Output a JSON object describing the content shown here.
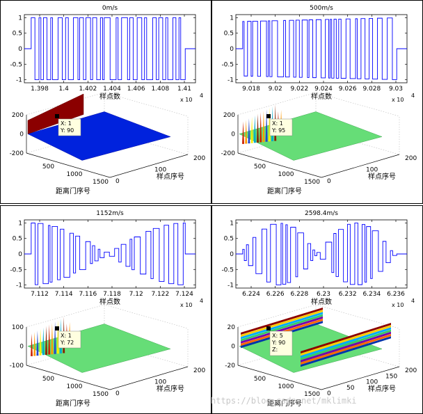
{
  "chart_data": [
    {
      "type": "line",
      "title": "0m/s",
      "xlabel": "样点数",
      "x_exponent_label": "x 10",
      "x_exponent_power": "4",
      "xticks": [
        "1.398",
        "1.4",
        "1.402",
        "1.404",
        "1.406",
        "1.408",
        "1.41"
      ],
      "yticks": [
        "1",
        "0.5",
        "0",
        "-0.5",
        "-1"
      ],
      "xlim": [
        13965,
        14115
      ],
      "ylim": [
        -1.1,
        1.1
      ],
      "envelope": "flat",
      "series_color": "#0000ff",
      "lower_plot": {
        "xlabel": "距离门序号",
        "ylabel": "样点序号",
        "xticks": [
          "500",
          "1000",
          "1500"
        ],
        "yticks": [
          "0",
          "100",
          "200"
        ],
        "zticks": [
          "200",
          "0",
          "-200"
        ],
        "tooltip_lines": [
          "X: 1",
          "Y: 90"
        ],
        "surface_style": "blue-plane-red-wall"
      }
    },
    {
      "type": "line",
      "title": "500m/s",
      "xlabel": "样点数",
      "x_exponent_label": "x 10",
      "x_exponent_power": "4",
      "xticks": [
        "9.018",
        "9.02",
        "9.022",
        "9.024",
        "9.026",
        "9.028",
        "9.03"
      ],
      "yticks": [
        "1",
        "0.5",
        "0",
        "-0.5",
        "-1"
      ],
      "xlim": [
        90165,
        90310
      ],
      "ylim": [
        -1.1,
        1.1
      ],
      "envelope": "sloped",
      "series_color": "#0000ff",
      "lower_plot": {
        "xlabel": "距离门序号",
        "ylabel": "样点序号",
        "xticks": [
          "500",
          "1000",
          "1500"
        ],
        "yticks": [
          "0",
          "100",
          "200"
        ],
        "zticks": [
          "200",
          "0",
          "-200"
        ],
        "tooltip_lines": [
          "X: 1",
          "Y: 95"
        ],
        "surface_style": "green-plane-spikes"
      }
    },
    {
      "type": "line",
      "title": "1152m/s",
      "xlabel": "样点数",
      "x_exponent_label": "x 10",
      "x_exponent_power": "4",
      "xticks": [
        "7.112",
        "7.114",
        "7.116",
        "7.118",
        "7.12",
        "7.122",
        "7.124"
      ],
      "yticks": [
        "1",
        "0.5",
        "0",
        "-0.5",
        "-1"
      ],
      "xlim": [
        71115,
        71255
      ],
      "ylim": [
        -1.1,
        1.1
      ],
      "envelope": "bowtie",
      "series_color": "#0000ff",
      "lower_plot": {
        "xlabel": "距离门序号",
        "ylabel": "样点序号",
        "xticks": [
          "500",
          "1000",
          "1500"
        ],
        "yticks": [
          "0",
          "100",
          "200"
        ],
        "zticks": [
          "100",
          "0",
          "-100"
        ],
        "tooltip_lines": [
          "X: 1",
          "Y: 72"
        ],
        "surface_style": "green-plane-spikes"
      }
    },
    {
      "type": "line",
      "title": "2598.4m/s",
      "xlabel": "样点数",
      "x_exponent_label": "x 10",
      "x_exponent_power": "4",
      "xticks": [
        "6.224",
        "6.226",
        "6.228",
        "6.23",
        "6.232",
        "6.234",
        "6.236"
      ],
      "yticks": [
        "1",
        "0.5",
        "0",
        "-0.5",
        "-1"
      ],
      "xlim": [
        62225,
        62365
      ],
      "ylim": [
        -1.1,
        1.1
      ],
      "envelope": "double-bowtie",
      "series_color": "#0000ff",
      "lower_plot": {
        "xlabel": "距离门序号",
        "ylabel": "样点序号",
        "xticks": [
          "500",
          "1000",
          "1500"
        ],
        "yticks": [
          "0",
          "50",
          "100",
          "150",
          "200"
        ],
        "zticks": [
          "20",
          "0",
          "-20"
        ],
        "tooltip_lines": [
          "X: 5",
          "Y: 90",
          "Z: "
        ],
        "surface_style": "striped-walls"
      }
    }
  ],
  "watermark": "https://blog.csdn.net/mklimki"
}
